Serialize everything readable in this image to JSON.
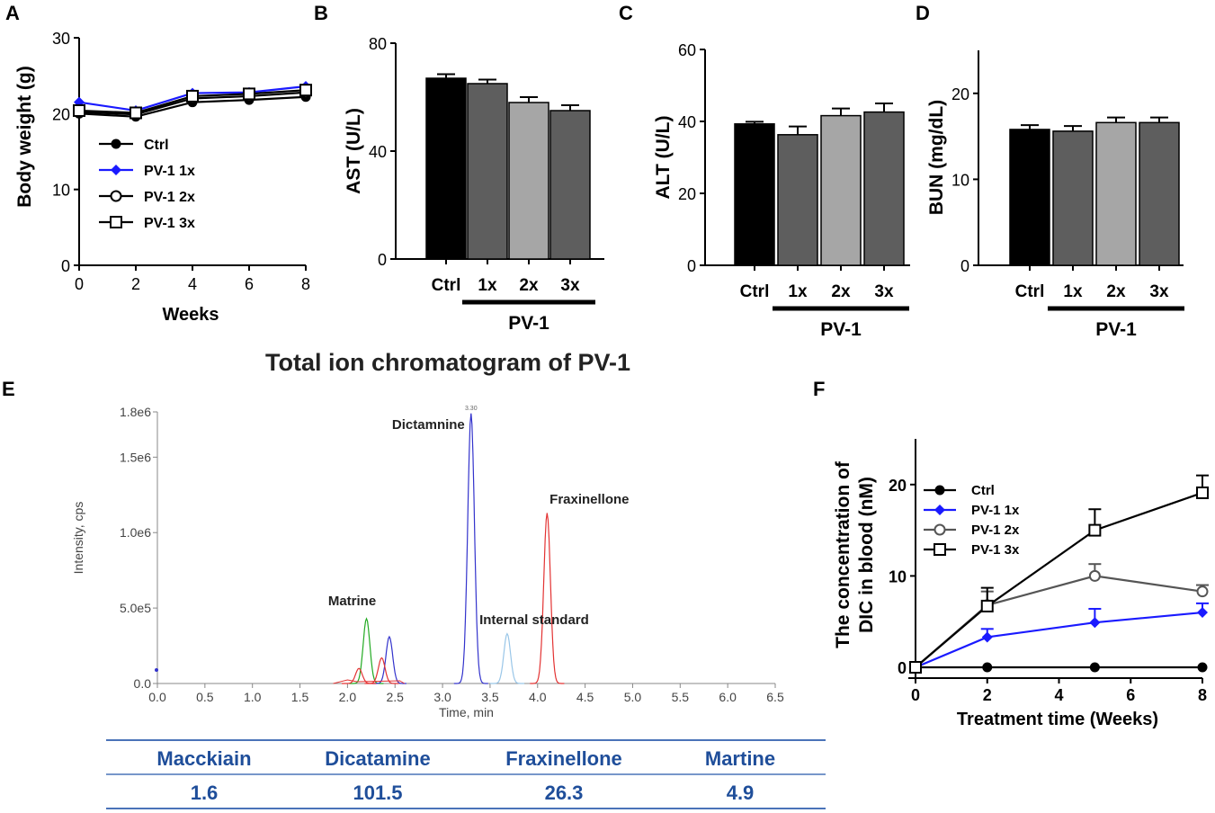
{
  "chart_data": [
    {
      "panel": "A",
      "type": "line",
      "title": "",
      "xlabel": "Weeks",
      "ylabel": "Body weight (g)",
      "x": [
        0,
        2,
        4,
        6,
        8
      ],
      "xlim": [
        0,
        8
      ],
      "ylim": [
        0,
        30
      ],
      "xticks": [
        "0",
        "2",
        "4",
        "6",
        "8"
      ],
      "yticks": [
        "0",
        "10",
        "20",
        "30"
      ],
      "series": [
        {
          "name": "Ctrl",
          "values": [
            20.0,
            19.6,
            21.5,
            21.8,
            22.2
          ],
          "color": "#000000",
          "marker": "filled-circle"
        },
        {
          "name": "PV-1 1x",
          "values": [
            21.5,
            20.4,
            22.7,
            22.8,
            23.6
          ],
          "color": "#1a1aff",
          "marker": "diamond"
        },
        {
          "name": "PV-1 2x",
          "values": [
            20.2,
            19.9,
            22.0,
            22.3,
            22.8
          ],
          "color": "#000000",
          "marker": "open-circle"
        },
        {
          "name": "PV-1 3x",
          "values": [
            20.4,
            20.1,
            22.3,
            22.6,
            23.1
          ],
          "color": "#000000",
          "marker": "open-square"
        }
      ],
      "legend": "center-left"
    },
    {
      "panel": "B",
      "type": "bar",
      "ylabel": "AST (U/L)",
      "categories": [
        "Ctrl",
        "1x",
        "2x",
        "3x"
      ],
      "group_label": "PV-1",
      "values": [
        67,
        65,
        58,
        55
      ],
      "errors": [
        1.5,
        1.5,
        2,
        2
      ],
      "ylim": [
        0,
        80
      ],
      "yticks": [
        "0",
        "40",
        "80"
      ],
      "colors": [
        "#000000",
        "#5e5e5e",
        "#a6a6a6",
        "#5e5e5e"
      ]
    },
    {
      "panel": "C",
      "type": "bar",
      "ylabel": "ALT (U/L)",
      "categories": [
        "Ctrl",
        "1x",
        "2x",
        "3x"
      ],
      "group_label": "PV-1",
      "values": [
        39.3,
        36.3,
        41.6,
        42.6
      ],
      "errors": [
        0.6,
        2.3,
        2.0,
        2.4
      ],
      "ylim": [
        0,
        60
      ],
      "yticks": [
        "0",
        "20",
        "40",
        "60"
      ],
      "colors": [
        "#000000",
        "#5e5e5e",
        "#a6a6a6",
        "#5e5e5e"
      ]
    },
    {
      "panel": "D",
      "type": "bar",
      "ylabel": "BUN (mg/dL)",
      "categories": [
        "Ctrl",
        "1x",
        "2x",
        "3x"
      ],
      "group_label": "PV-1",
      "values": [
        15.8,
        15.6,
        16.6,
        16.6
      ],
      "errors": [
        0.5,
        0.6,
        0.6,
        0.6
      ],
      "ylim": [
        0,
        25
      ],
      "yticks": [
        "0",
        "10",
        "20"
      ],
      "colors": [
        "#000000",
        "#5e5e5e",
        "#a6a6a6",
        "#5e5e5e"
      ]
    },
    {
      "panel": "E",
      "type": "line",
      "title": "Total ion chromatogram of PV-1",
      "xlabel": "Time, min",
      "ylabel": "Intensity, cps",
      "xlim": [
        0,
        6.5
      ],
      "ylim": [
        0,
        1800000
      ],
      "xticks": [
        "0.0",
        "0.5",
        "1.0",
        "1.5",
        "2.0",
        "2.5",
        "3.0",
        "3.5",
        "4.0",
        "4.5",
        "5.0",
        "5.5",
        "6.0",
        "6.5"
      ],
      "yticks": [
        "0.0",
        "5.0e5",
        "1.0e6",
        "1.5e6",
        "1.8e6"
      ],
      "top_label": "3.30",
      "peaks": [
        {
          "name": "Dictamnine",
          "rt": 3.3,
          "height": 1790000,
          "color": "#3333cc"
        },
        {
          "name": "Fraxinellone",
          "rt": 4.1,
          "height": 1130000,
          "color": "#e33333"
        },
        {
          "name": "Internal standard",
          "rt": 3.68,
          "height": 330000,
          "color": "#99c6e8"
        },
        {
          "name": "Matrine",
          "rt": 2.2,
          "height": 430000,
          "color": "#22aa22"
        },
        {
          "name": "",
          "rt": 2.44,
          "height": 310000,
          "color": "#3333cc"
        },
        {
          "name": "",
          "rt": 2.36,
          "height": 170000,
          "color": "#e33333"
        },
        {
          "name": "",
          "rt": 2.12,
          "height": 100000,
          "color": "#e33333"
        }
      ],
      "table": {
        "headers": [
          "Macckiain",
          "Dicatamine",
          "Fraxinellone",
          "Martine"
        ],
        "values": [
          "1.6",
          "101.5",
          "26.3",
          "4.9"
        ]
      }
    },
    {
      "panel": "F",
      "type": "line",
      "xlabel": "Treatment time (Weeks)",
      "ylabel": [
        "The concentration of",
        "DIC in blood (nM)"
      ],
      "x": [
        0,
        2,
        5,
        8
      ],
      "xlim": [
        0,
        8
      ],
      "ylim": [
        0,
        25
      ],
      "xticks": [
        "0",
        "2",
        "4",
        "6",
        "8"
      ],
      "yticks": [
        "0",
        "10",
        "20"
      ],
      "series": [
        {
          "name": "Ctrl",
          "values": [
            0,
            0,
            0,
            0
          ],
          "errors": [
            0,
            0,
            0,
            0
          ],
          "color": "#000000",
          "marker": "filled-circle"
        },
        {
          "name": "PV-1 1x",
          "values": [
            0,
            3.3,
            4.9,
            6.0
          ],
          "errors": [
            0,
            0.9,
            1.5,
            1.0
          ],
          "color": "#1a1aff",
          "marker": "diamond"
        },
        {
          "name": "PV-1 2x",
          "values": [
            0,
            6.8,
            10.0,
            8.3
          ],
          "errors": [
            0,
            1.5,
            1.3,
            0.7
          ],
          "color": "#555555",
          "marker": "open-circle"
        },
        {
          "name": "PV-1 3x",
          "values": [
            0,
            6.7,
            15.0,
            19.1
          ],
          "errors": [
            0,
            2.0,
            2.3,
            1.9
          ],
          "color": "#000000",
          "marker": "open-square"
        }
      ],
      "legend": "top-left"
    }
  ],
  "panel_labels": [
    "A",
    "B",
    "C",
    "D",
    "E",
    "F"
  ]
}
